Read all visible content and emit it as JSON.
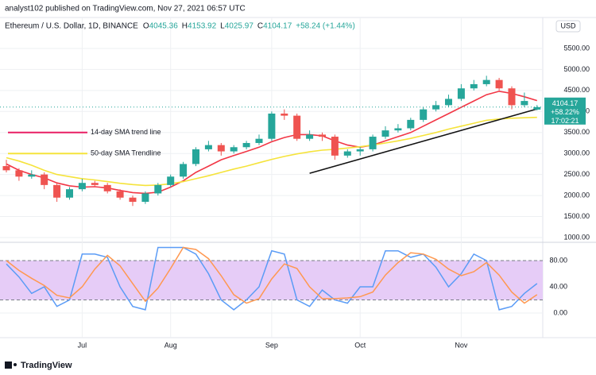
{
  "header": {
    "byline": "analyst102 published on TradingView.com, Nov 27, 2021 06:57 UTC",
    "footer": "TradingView"
  },
  "chart_data": [
    {
      "type": "candlestick",
      "symbol": "Ethereum / U.S. Dollar, 1D, BINANCE",
      "currency": "USD",
      "ohlc_labels": [
        "O",
        "H",
        "L",
        "C"
      ],
      "change": "+58.24 (+1.44%)",
      "price_change": "+58.22%",
      "countdown": "17:02:21",
      "up_color": "#26a69a",
      "down_color": "#ef5350",
      "open": [
        2700,
        2600,
        2450,
        2500,
        2250,
        1950,
        2150,
        2300,
        2250,
        2100,
        1950,
        1850,
        2050,
        2250,
        2450,
        2750,
        3100,
        3200,
        3050,
        3150,
        3250,
        3350,
        3950,
        3900,
        3350,
        3450,
        3400,
        2950,
        3050,
        3100,
        3400,
        3550,
        3600,
        3800,
        4050,
        4150,
        4300,
        4550,
        4650,
        4750,
        4550,
        4150,
        4045.36
      ],
      "high": [
        2850,
        2650,
        2600,
        2550,
        2300,
        2200,
        2400,
        2350,
        2300,
        2150,
        2000,
        2100,
        2300,
        2500,
        2800,
        3150,
        3300,
        3250,
        3200,
        3300,
        3450,
        4000,
        4050,
        3950,
        3550,
        3500,
        3450,
        3100,
        3150,
        3450,
        3650,
        3700,
        3850,
        4100,
        4250,
        4400,
        4650,
        4750,
        4850,
        4800,
        4600,
        4450,
        4153.92
      ],
      "low": [
        2550,
        2350,
        2400,
        2150,
        1850,
        1900,
        2100,
        2200,
        2050,
        1900,
        1750,
        1800,
        2000,
        2200,
        2400,
        2700,
        3050,
        2950,
        3000,
        3100,
        3200,
        3300,
        3800,
        3300,
        3300,
        3300,
        2850,
        2900,
        2950,
        3050,
        3350,
        3500,
        3550,
        3750,
        4000,
        4100,
        4250,
        4500,
        4600,
        4500,
        4050,
        4100,
        4025.97
      ],
      "close": [
        2600,
        2450,
        2500,
        2250,
        1950,
        2150,
        2300,
        2250,
        2100,
        1950,
        1850,
        2050,
        2250,
        2450,
        2750,
        3100,
        3200,
        3050,
        3150,
        3250,
        3350,
        3950,
        3900,
        3350,
        3450,
        3400,
        2950,
        3050,
        3100,
        3400,
        3550,
        3600,
        3800,
        4050,
        4150,
        4300,
        4550,
        4650,
        4750,
        4550,
        4150,
        4250,
        4104.17
      ],
      "overlays": [
        {
          "color": "#f23645",
          "values": [
            2750,
            2600,
            2500,
            2420,
            2300,
            2230,
            2200,
            2210,
            2180,
            2120,
            2070,
            2050,
            2080,
            2200,
            2350,
            2550,
            2700,
            2850,
            2950,
            3050,
            3150,
            3280,
            3380,
            3450,
            3450,
            3420,
            3300,
            3200,
            3150,
            3200,
            3300,
            3400,
            3500,
            3650,
            3800,
            3950,
            4100,
            4250,
            4400,
            4480,
            4430,
            4350,
            4260
          ]
        },
        {
          "color": "#f5e33b",
          "values": [
            2900,
            2820,
            2720,
            2600,
            2500,
            2450,
            2400,
            2370,
            2330,
            2290,
            2260,
            2240,
            2250,
            2280,
            2330,
            2400,
            2470,
            2550,
            2630,
            2700,
            2780,
            2860,
            2930,
            2990,
            3040,
            3080,
            3100,
            3130,
            3160,
            3200,
            3250,
            3300,
            3360,
            3430,
            3500,
            3580,
            3650,
            3720,
            3790,
            3820,
            3840,
            3850,
            3860
          ]
        }
      ],
      "trendline": {
        "color": "#111111",
        "values": [
          null,
          null,
          null,
          null,
          null,
          null,
          null,
          null,
          null,
          null,
          null,
          null,
          null,
          null,
          null,
          null,
          null,
          null,
          null,
          null,
          null,
          null,
          null,
          null,
          2530,
          2615,
          2700,
          2785,
          2870,
          2955,
          3040,
          3125,
          3210,
          3295,
          3380,
          3465,
          3550,
          3635,
          3720,
          3805,
          3890,
          3975,
          4060
        ]
      },
      "annotations": [
        {
          "text": "14-day SMA trend line",
          "color": "#e91e63",
          "value": 3500
        },
        {
          "text": "50-day SMA Trendline",
          "color": "#f5e33b",
          "value": 3000
        }
      ],
      "ylim": [
        905,
        6237
      ],
      "yticks": [
        {
          "value": 1000,
          "label": "1000.00"
        },
        {
          "value": 1500,
          "label": "1500.00"
        },
        {
          "value": 2000,
          "label": "2000.00"
        },
        {
          "value": 2500,
          "label": "2500.00"
        },
        {
          "value": 3000,
          "label": "3000.00"
        },
        {
          "value": 3500,
          "label": "3500.00"
        },
        {
          "value": 4000,
          "label": "4000.00"
        },
        {
          "value": 4500,
          "label": "4500.00"
        },
        {
          "value": 5000,
          "label": "5000.00"
        },
        {
          "value": 5500,
          "label": "5500.00"
        }
      ],
      "grid": true
    },
    {
      "type": "line",
      "categories": [
        null,
        null,
        null,
        null,
        null,
        null,
        "Jul",
        null,
        null,
        null,
        null,
        null,
        null,
        "Aug",
        null,
        null,
        null,
        null,
        null,
        null,
        null,
        "Sep",
        null,
        null,
        null,
        null,
        null,
        null,
        "Oct",
        null,
        null,
        null,
        null,
        null,
        null,
        null,
        "Nov",
        null,
        null,
        null,
        null,
        null,
        null
      ],
      "series": [
        {
          "color": "#5b9cf6",
          "values": [
            75,
            55,
            30,
            40,
            10,
            20,
            90,
            90,
            85,
            40,
            10,
            5,
            100,
            100,
            100,
            90,
            60,
            20,
            5,
            20,
            40,
            95,
            90,
            20,
            10,
            35,
            20,
            15,
            40,
            40,
            95,
            95,
            85,
            90,
            70,
            40,
            60,
            90,
            80,
            5,
            10,
            30,
            45
          ]
        },
        {
          "color": "#ff9850",
          "values": [
            80,
            65,
            53,
            42,
            27,
            23,
            40,
            67,
            88,
            72,
            45,
            18,
            38,
            68,
            100,
            97,
            83,
            57,
            28,
            15,
            22,
            52,
            75,
            68,
            40,
            22,
            22,
            23,
            25,
            32,
            58,
            77,
            92,
            90,
            82,
            67,
            57,
            63,
            77,
            58,
            32,
            15,
            28
          ]
        }
      ],
      "band": [
        20,
        80
      ],
      "band_color": "#e6ccf7",
      "ylim": [
        -37.6,
        105.5
      ],
      "yticks": [
        {
          "value": 0,
          "label": "0.00"
        },
        {
          "value": 40,
          "label": "40.00"
        },
        {
          "value": 80,
          "label": "80.00"
        }
      ],
      "grid": true
    }
  ]
}
